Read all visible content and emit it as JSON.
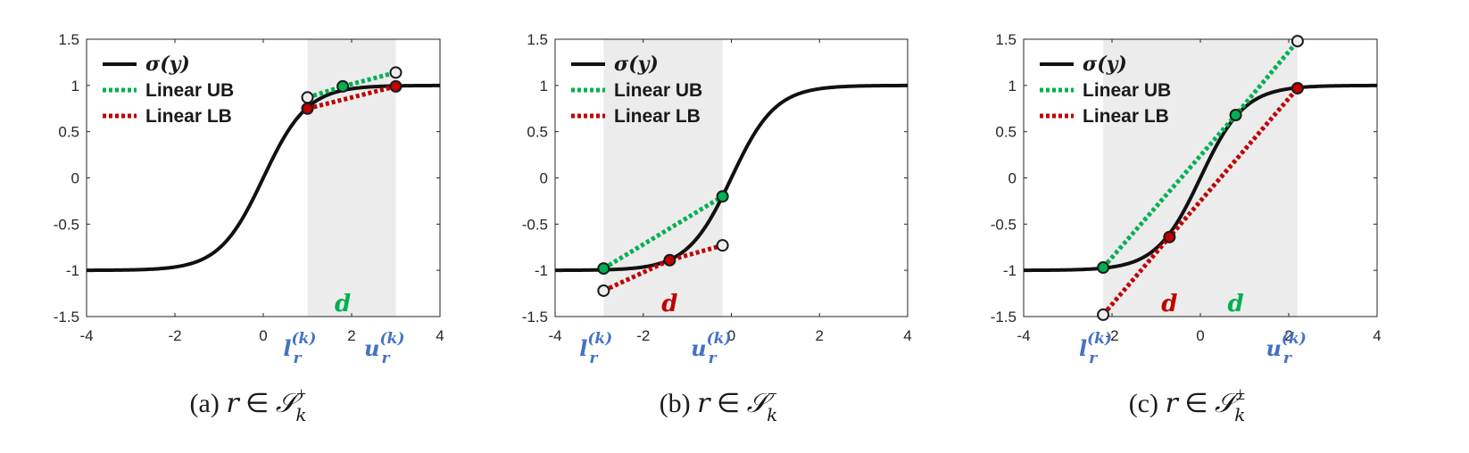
{
  "colors": {
    "sigmoid": "#111111",
    "upper_bound": "#00b050",
    "lower_bound": "#c00000",
    "shade": "#ececec",
    "tangent_point_green": "#00b050",
    "tangent_point_red": "#c00000",
    "end_point_white": "#eeeeee",
    "bound_label": "#4472c4"
  },
  "chart_data": [
    {
      "type": "line",
      "caption": "(a) r ∈ 𝒮k+",
      "caption_parts": {
        "prefix": "(a) ",
        "var": "r",
        "rel": " ∈ ",
        "set": "𝒮",
        "sub": "k",
        "sup": "+"
      },
      "x_ticks": [
        "-4",
        "-2",
        "0",
        "2",
        "4"
      ],
      "y_ticks": [
        "1.5",
        "1",
        "0.5",
        "0",
        "-0.5",
        "-1",
        "-1.5"
      ],
      "xlim": [
        -4,
        4
      ],
      "ylim": [
        -1.5,
        1.5
      ],
      "legend": {
        "placement": "top-left",
        "entries": [
          "σ(y)",
          "Linear UB",
          "Linear LB"
        ]
      },
      "series": [
        {
          "name": "σ(y)",
          "function": "tanh"
        },
        {
          "name": "Linear UB",
          "points": [
            [
              1,
              0.87
            ],
            [
              1.8,
              0.99
            ],
            [
              3,
              1.14
            ]
          ]
        },
        {
          "name": "Linear LB",
          "points": [
            [
              1,
              0.75
            ],
            [
              3,
              0.99
            ]
          ]
        }
      ],
      "shaded_interval": [
        1,
        3
      ],
      "markers": [
        {
          "x": 1,
          "y": 0.87,
          "color": "white"
        },
        {
          "x": 1,
          "y": 0.75,
          "color": "red"
        },
        {
          "x": 1.8,
          "y": 0.99,
          "color": "green"
        },
        {
          "x": 3,
          "y": 1.14,
          "color": "white"
        },
        {
          "x": 3,
          "y": 0.99,
          "color": "red"
        }
      ],
      "d_labels": [
        {
          "text": "d",
          "x": 1.8,
          "color": "green"
        }
      ],
      "bounds": {
        "lower": {
          "x": 1,
          "base": "l",
          "sub": "r",
          "sup": "(k)"
        },
        "upper": {
          "x": 3,
          "base": "u",
          "sub": "r",
          "sup": "(k)"
        }
      }
    },
    {
      "type": "line",
      "caption": "(b) r ∈ 𝒮k−",
      "caption_parts": {
        "prefix": "(b) ",
        "var": "r",
        "rel": " ∈ ",
        "set": "𝒮",
        "sub": "k",
        "sup": "−"
      },
      "x_ticks": [
        "-4",
        "-2",
        "0",
        "2",
        "4"
      ],
      "y_ticks": [
        "1.5",
        "1",
        "0.5",
        "0",
        "-0.5",
        "-1",
        "-1.5"
      ],
      "xlim": [
        -4,
        4
      ],
      "ylim": [
        -1.5,
        1.5
      ],
      "legend": {
        "placement": "top-left",
        "entries": [
          "σ(y)",
          "Linear UB",
          "Linear LB"
        ]
      },
      "series": [
        {
          "name": "σ(y)",
          "function": "tanh"
        },
        {
          "name": "Linear UB",
          "points": [
            [
              -2.9,
              -0.98
            ],
            [
              -0.2,
              -0.2
            ]
          ]
        },
        {
          "name": "Linear LB",
          "points": [
            [
              -2.9,
              -1.22
            ],
            [
              -1.4,
              -0.89
            ],
            [
              -0.2,
              -0.73
            ]
          ]
        }
      ],
      "shaded_interval": [
        -2.9,
        -0.2
      ],
      "markers": [
        {
          "x": -2.9,
          "y": -0.98,
          "color": "green"
        },
        {
          "x": -2.9,
          "y": -1.22,
          "color": "white"
        },
        {
          "x": -1.4,
          "y": -0.89,
          "color": "red"
        },
        {
          "x": -0.2,
          "y": -0.2,
          "color": "green"
        },
        {
          "x": -0.2,
          "y": -0.73,
          "color": "white"
        }
      ],
      "d_labels": [
        {
          "text": "d",
          "x": -1.4,
          "color": "red"
        }
      ],
      "bounds": {
        "lower": {
          "x": -2.9,
          "base": "l",
          "sub": "r",
          "sup": "(k)"
        },
        "upper": {
          "x": -0.2,
          "base": "u",
          "sub": "r",
          "sup": "(k)"
        }
      }
    },
    {
      "type": "line",
      "caption": "(c) r ∈ 𝒮k±",
      "caption_parts": {
        "prefix": "(c) ",
        "var": "r",
        "rel": " ∈ ",
        "set": "𝒮",
        "sub": "k",
        "sup": "±"
      },
      "x_ticks": [
        "-4",
        "-2",
        "0",
        "2",
        "4"
      ],
      "y_ticks": [
        "1.5",
        "1",
        "0.5",
        "0",
        "-0.5",
        "-1",
        "-1.5"
      ],
      "xlim": [
        -4,
        4
      ],
      "ylim": [
        -1.5,
        1.5
      ],
      "legend": {
        "placement": "top-left",
        "entries": [
          "σ(y)",
          "Linear UB",
          "Linear LB"
        ]
      },
      "series": [
        {
          "name": "σ(y)",
          "function": "tanh"
        },
        {
          "name": "Linear UB",
          "points": [
            [
              -2.2,
              -0.97
            ],
            [
              0.8,
              0.68
            ],
            [
              2.2,
              1.48
            ]
          ]
        },
        {
          "name": "Linear LB",
          "points": [
            [
              -2.2,
              -1.48
            ],
            [
              -0.7,
              -0.64
            ],
            [
              2.2,
              0.97
            ]
          ]
        }
      ],
      "shaded_interval": [
        -2.2,
        2.2
      ],
      "markers": [
        {
          "x": -2.2,
          "y": -0.97,
          "color": "green"
        },
        {
          "x": -2.2,
          "y": -1.48,
          "color": "white"
        },
        {
          "x": -0.7,
          "y": -0.64,
          "color": "red"
        },
        {
          "x": 0.8,
          "y": 0.68,
          "color": "green"
        },
        {
          "x": 2.2,
          "y": 1.48,
          "color": "white"
        },
        {
          "x": 2.2,
          "y": 0.97,
          "color": "red"
        }
      ],
      "d_labels": [
        {
          "text": "d",
          "x": -0.7,
          "color": "red"
        },
        {
          "text": "d",
          "x": 0.8,
          "color": "green"
        }
      ],
      "bounds": {
        "lower": {
          "x": -2.2,
          "base": "l",
          "sub": "r",
          "sup": "(k)"
        },
        "upper": {
          "x": 2.2,
          "base": "u",
          "sub": "r",
          "sup": "(k)"
        }
      }
    }
  ]
}
